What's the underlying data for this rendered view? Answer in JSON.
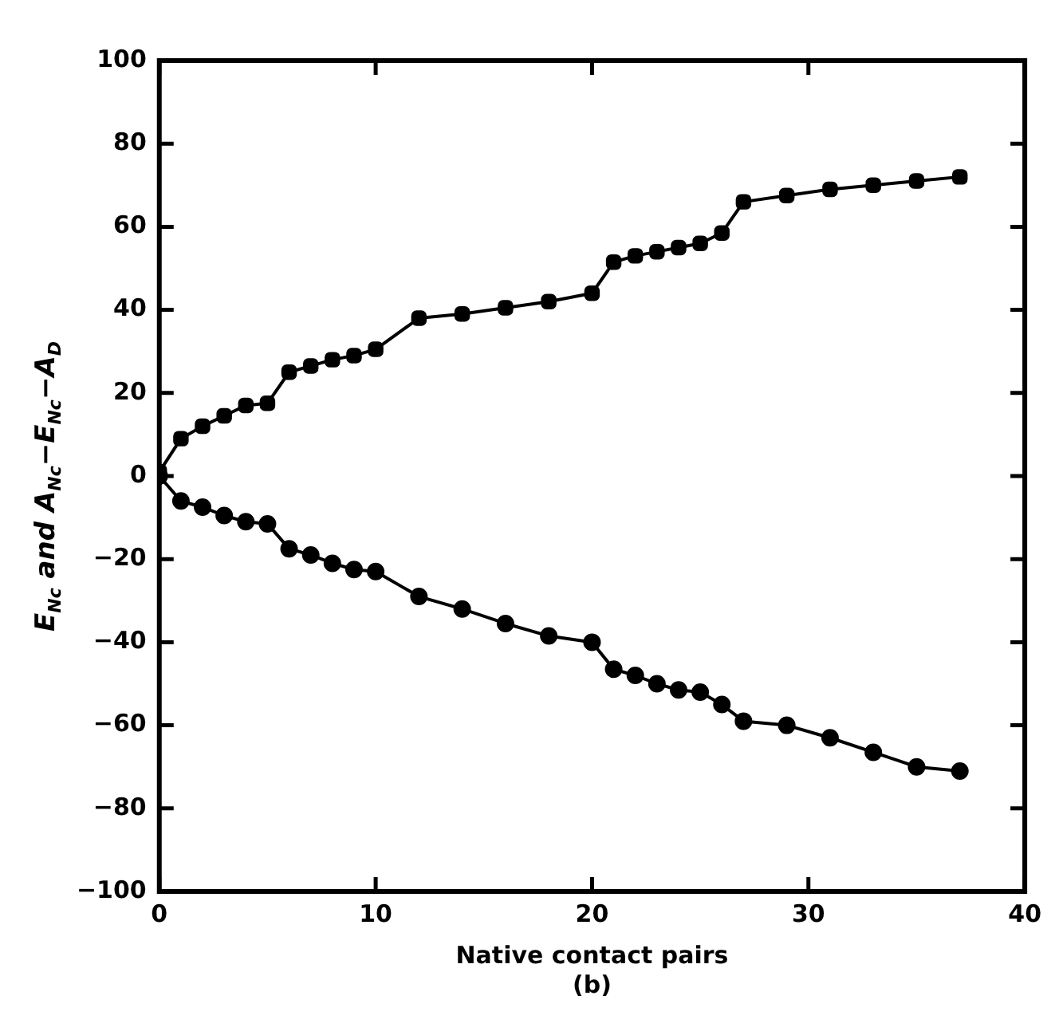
{
  "chart_data": {
    "type": "line",
    "xlabel": "Native contact pairs",
    "ylabel": "E$_{Nc}$ and A$_{Nc}$−E$_{Nc}$−A$_{D}$",
    "annotations": [
      "(b)"
    ],
    "xlim": [
      0,
      40
    ],
    "xticks": [
      0,
      10,
      20,
      30,
      40
    ],
    "ylim": [
      -100,
      100
    ],
    "yticks": [
      -100,
      -80,
      -60,
      -40,
      -20,
      0,
      20,
      40,
      60,
      80,
      100
    ],
    "grid": false,
    "legend": false,
    "line_style": "solid",
    "x": [
      0,
      1,
      2,
      3,
      4,
      5,
      6,
      7,
      8,
      9,
      10,
      12,
      14,
      16,
      18,
      20,
      21,
      22,
      23,
      24,
      25,
      26,
      27,
      29,
      31,
      33,
      35,
      37
    ],
    "series": [
      {
        "color": "#000000",
        "marker": "square",
        "values": [
          1,
          9,
          12,
          14.5,
          17,
          17.5,
          25,
          26.5,
          28,
          29,
          30.5,
          38,
          39,
          40.5,
          42,
          44,
          51.5,
          53,
          54,
          55,
          56,
          58.5,
          66,
          67.5,
          69,
          70,
          71,
          72
        ]
      },
      {
        "color": "#000000",
        "marker": "circle",
        "values": [
          0,
          -6,
          -7.5,
          -9.5,
          -11,
          -11.5,
          -17.5,
          -19,
          -21,
          -22.5,
          -23,
          -29,
          -32,
          -35.5,
          -38.5,
          -40,
          -46.5,
          -48,
          -50,
          -51.5,
          -52,
          -55,
          -59,
          -60,
          -63,
          -66.5,
          -70,
          -71
        ]
      }
    ]
  }
}
